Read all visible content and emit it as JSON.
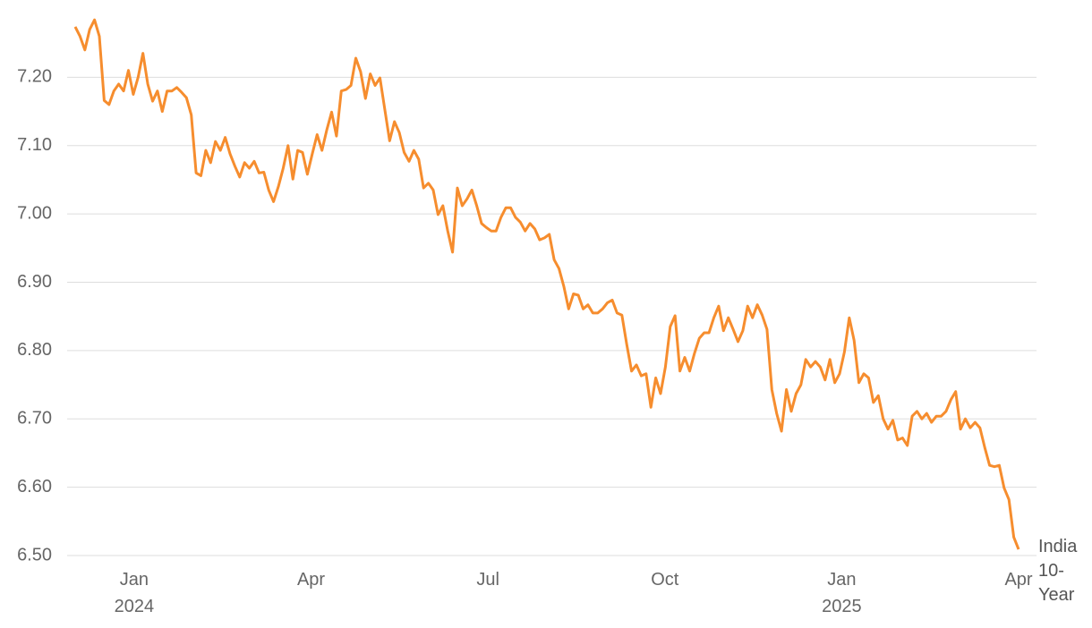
{
  "chart_data": {
    "type": "line",
    "xlim": [
      "2023-12",
      "2025-04"
    ],
    "xticks": [
      {
        "value": "2024-01",
        "label": "Jan 2024"
      },
      {
        "value": "2024-04",
        "label": "Apr"
      },
      {
        "value": "2024-07",
        "label": "Jul"
      },
      {
        "value": "2024-10",
        "label": "Oct"
      },
      {
        "value": "2025-01",
        "label": "Jan 2025"
      },
      {
        "value": "2025-04",
        "label": "Apr"
      }
    ],
    "ylim": [
      6.5,
      7.3
    ],
    "yticks": [
      {
        "value": 6.5,
        "label": "6.50"
      },
      {
        "value": 6.6,
        "label": "6.60"
      },
      {
        "value": 6.7,
        "label": "6.70"
      },
      {
        "value": 6.8,
        "label": "6.80"
      },
      {
        "value": 6.9,
        "label": "6.90"
      },
      {
        "value": 7.0,
        "label": "7.00"
      },
      {
        "value": 7.1,
        "label": "7.10"
      },
      {
        "value": 7.2,
        "label": "7.20"
      }
    ],
    "grid": true,
    "series": [
      {
        "name": "India 10-Year",
        "color": "#f68d2e",
        "values": [
          7.274,
          7.26,
          7.24,
          7.27,
          7.284,
          7.26,
          7.166,
          7.16,
          7.18,
          7.19,
          7.18,
          7.21,
          7.175,
          7.2,
          7.235,
          7.19,
          7.165,
          7.18,
          7.15,
          7.18,
          7.18,
          7.185,
          7.178,
          7.17,
          7.145,
          7.06,
          7.056,
          7.093,
          7.075,
          7.106,
          7.093,
          7.112,
          7.088,
          7.07,
          7.054,
          7.075,
          7.067,
          7.077,
          7.06,
          7.061,
          7.035,
          7.018,
          7.04,
          7.067,
          7.1,
          7.051,
          7.093,
          7.09,
          7.058,
          7.088,
          7.116,
          7.093,
          7.123,
          7.149,
          7.114,
          7.18,
          7.182,
          7.188,
          7.228,
          7.208,
          7.169,
          7.205,
          7.188,
          7.199,
          7.153,
          7.107,
          7.135,
          7.119,
          7.09,
          7.077,
          7.093,
          7.08,
          7.038,
          7.045,
          7.035,
          6.999,
          7.012,
          6.975,
          6.944,
          7.038,
          7.012,
          7.022,
          7.035,
          7.012,
          6.986,
          6.98,
          6.975,
          6.975,
          6.995,
          7.009,
          7.009,
          6.995,
          6.988,
          6.975,
          6.986,
          6.978,
          6.962,
          6.965,
          6.97,
          6.933,
          6.92,
          6.894,
          6.861,
          6.883,
          6.881,
          6.861,
          6.867,
          6.855,
          6.855,
          6.861,
          6.87,
          6.874,
          6.855,
          6.852,
          6.809,
          6.77,
          6.779,
          6.763,
          6.766,
          6.717,
          6.76,
          6.737,
          6.776,
          6.835,
          6.851,
          6.77,
          6.79,
          6.77,
          6.796,
          6.818,
          6.826,
          6.826,
          6.848,
          6.865,
          6.829,
          6.848,
          6.831,
          6.813,
          6.829,
          6.865,
          6.848,
          6.867,
          6.852,
          6.831,
          6.743,
          6.708,
          6.682,
          6.743,
          6.711,
          6.737,
          6.75,
          6.787,
          6.776,
          6.784,
          6.776,
          6.757,
          6.787,
          6.753,
          6.766,
          6.798,
          6.848,
          6.815,
          6.753,
          6.766,
          6.76,
          6.724,
          6.734,
          6.7,
          6.685,
          6.698,
          6.669,
          6.672,
          6.661,
          6.704,
          6.711,
          6.7,
          6.708,
          6.695,
          6.704,
          6.704,
          6.711,
          6.728,
          6.74,
          6.685,
          6.7,
          6.687,
          6.695,
          6.687,
          6.658,
          6.632,
          6.63,
          6.632,
          6.599,
          6.582,
          6.527,
          6.509
        ]
      }
    ]
  }
}
